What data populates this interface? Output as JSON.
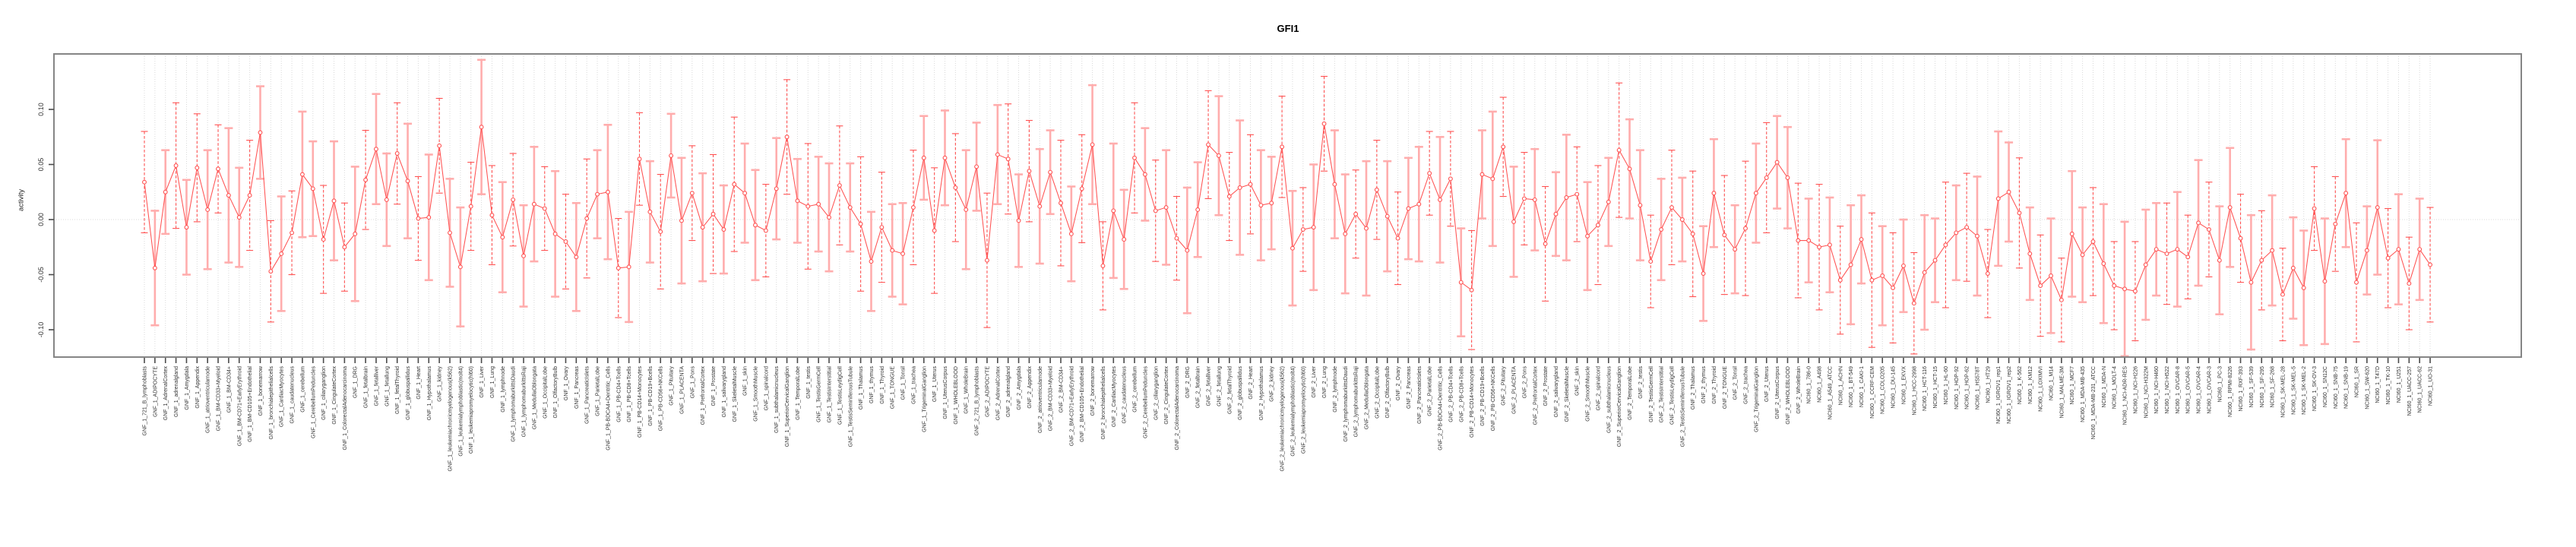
{
  "page": {
    "title": "GFI1"
  },
  "chart_data": {
    "type": "line",
    "title": "GFI1",
    "ylabel": "activity",
    "xlabel": "",
    "ytick_labels": [
      "0.10",
      "0.05",
      "0.00",
      "-0.05",
      "-0.10"
    ],
    "ylim": [
      -0.125,
      0.148
    ],
    "grid": "dotted vertical gridline at every category; dotted horizontal line at 0",
    "legend_position": "none",
    "marker": "open-circle",
    "error_bars": true,
    "colors": {
      "series": "#ff5252",
      "error_bars_light": "#ffadad",
      "gridline": "#d9d9d9",
      "axis_border": "#858585",
      "text": "#303030"
    },
    "categories": [
      "GNF_1_721_B_lymphoblasts",
      "GNF_1_ADIPOCYTE",
      "GNF_1_AdrenalCortex",
      "GNF_1_adrenalgland",
      "GNF_1_Amygdala",
      "GNF_1_Appendix",
      "GNF_1_atrioventricularnode",
      "GNF_1_BM-CD33+Myeloid",
      "GNF_1_BM-CD34+",
      "GNF_1_BM-CD71+EarlyErythroid",
      "GNF_1_BM-CD105+Endothelial",
      "GNF_1_bonemarrow",
      "GNF_1_bronchialepithelialcells",
      "GNF_1_CardiacMyocytes",
      "GNF_1_caudatenucleus",
      "GNF_1_cerebellum",
      "GNF_1_CerebellumPeduncles",
      "GNF_1_ciliaryganglion",
      "GNF_1_CingulateCortex",
      "GNF_1_ColorectalAdenocarcinoma",
      "GNF_1_DRG",
      "GNF_1_fetalbrain",
      "GNF_1_fetalliver",
      "GNF_1_fetallung",
      "GNF_1_fetalThyroid",
      "GNF_1_globuspallidus",
      "GNF_1_Heart",
      "GNF_1_Hypothalamus",
      "GNF_1_kidney",
      "GNF_1_leukemiachronicmyelogenous(k562)",
      "GNF_1_leukemialymphoblastic(molt4)",
      "GNF_1_leukemiapromyelocytic(hl60)",
      "GNF_1_Liver",
      "GNF_1_Lung",
      "GNF_1_lymphnode",
      "GNF_1_lymphomaburkittsDaudi",
      "GNF_1_lymphomaburkittsRaji",
      "GNF_1_MedullaOblongata",
      "GNF_1_OccipitalLobe",
      "GNF_1_OlfactoryBulb",
      "GNF_1_Ovary",
      "GNF_1_Pancreas",
      "GNF_1_PancreaticIslets",
      "GNF_1_ParietalLobe",
      "GNF_1_PB-BDCA4+Dentritic_Cells",
      "GNF_1_PB-CD4+Tcells",
      "GNF_1_PB-CD8+Tcells",
      "GNF_1_PB-CD14+Monocytes",
      "GNF_1_PB-CD19+Bcells",
      "GNF_1_PB-CD56+NKCells",
      "GNF_1_Pituitary",
      "GNF_1_PLACENTA",
      "GNF_1_Pons",
      "GNF_1_PrefrontalCortex",
      "GNF_1_Prostate",
      "GNF_1_salivarygland",
      "GNF_1_SkeletalMuscle",
      "GNF_1_skin",
      "GNF_1_SmoothMuscle",
      "GNF_1_spinalcord",
      "GNF_1_subthalamicnucleus",
      "GNF_1_SuperiorCervicalGanglion",
      "GNF_1_TemporalLobe",
      "GNF_1_testis",
      "GNF_1_TestisGermCell",
      "GNF_1_TestisInterstitial",
      "GNF_1_TestisLeydigCell",
      "GNF_1_TestisSeminiferousTubule",
      "GNF_1_Thalamus",
      "GNF_1_thymus",
      "GNF_1_Thyroid",
      "GNF_1_TONGUE",
      "GNF_1_Tonsil",
      "GNF_1_trachea",
      "GNF_1_TrigeminalGanglion",
      "GNF_1_Uterus",
      "GNF_1_UterusCorpus",
      "GNF_1_WHOLEBLOOD",
      "GNF_1_WholeBrain",
      "GNF_2_721_B_lymphoblasts",
      "GNF_2_ADIPOCYTE",
      "GNF_2_AdrenalCortex",
      "GNF_2_adrenalgland",
      "GNF_2_Amygdala",
      "GNF_2_Appendix",
      "GNF_2_atrioventricularnode",
      "GNF_2_BM-CD33+Myeloid",
      "GNF_2_BM-CD34+",
      "GNF_2_BM-CD71+EarlyErythroid",
      "GNF_2_BM-CD105+Endothelial",
      "GNF_2_bonemarrow",
      "GNF_2_bronchialepithelialcells",
      "GNF_2_CardiacMyocytes",
      "GNF_2_caudatenucleus",
      "GNF_2_cerebellum",
      "GNF_2_CerebellumPeduncles",
      "GNF_2_ciliaryganglion",
      "GNF_2_CingulateCortex",
      "GNF_2_ColorectalAdenocarcinoma",
      "GNF_2_DRG",
      "GNF_2_fetalbrain",
      "GNF_2_fetalliver",
      "GNF_2_fetallung",
      "GNF_2_fetalThyroid",
      "GNF_2_globuspallidus",
      "GNF_2_Heart",
      "GNF_2_Hypothalamus",
      "GNF_2_kidney",
      "GNF_2_leukemiachronicmyelogenous(k562)",
      "GNF_2_leukemialymphoblastic(molt4)",
      "GNF_2_leukemiapromyelocytic(hl60)",
      "GNF_2_Liver",
      "GNF_2_Lung",
      "GNF_2_lymphnode",
      "GNF_2_lymphomaburkittsDaudi",
      "GNF_2_lymphomaburkittsRaji",
      "GNF_2_MedullaOblongata",
      "GNF_2_OccipitalLobe",
      "GNF_2_OlfactoryBulb",
      "GNF_2_Ovary",
      "GNF_2_Pancreas",
      "GNF_2_PancreaticIslets",
      "GNF_2_ParietalLobe",
      "GNF_2_PB-BDCA4+Dentritic_Cells",
      "GNF_2_PB-CD4+Tcells",
      "GNF_2_PB-CD8+Tcells",
      "GNF_2_PB-CD14+Monocytes",
      "GNF_2_PB-CD19+Bcells",
      "GNF_2_PB-CD56+NKCells",
      "GNF_2_Pituitary",
      "GNF_2_PLACENTA",
      "GNF_2_Pons",
      "GNF_2_PrefrontalCortex",
      "GNF_2_Prostate",
      "GNF_2_salivarygland",
      "GNF_2_SkeletalMuscle",
      "GNF_2_skin",
      "GNF_2_SmoothMuscle",
      "GNF_2_spinalcord",
      "GNF_2_subthalamicnucleus",
      "GNF_2_SuperiorCervicalGanglion",
      "GNF_2_TemporalLobe",
      "GNF_2_testis",
      "GNF_2_TestisGermCell",
      "GNF_2_TestisInterstitial",
      "GNF_2_TestisLeydigCell",
      "GNF_2_TestisSeminiferousTubule",
      "GNF_2_Thalamus",
      "GNF_2_thymus",
      "GNF_2_Thyroid",
      "GNF_2_TONGUE",
      "GNF_2_Tonsil",
      "GNF_2_trachea",
      "GNF_2_TrigeminalGanglion",
      "GNF_2_Uterus",
      "GNF_2_UterusCorpus",
      "GNF_2_WHOLEBLOOD",
      "GNF_2_WholeBrain",
      "NCI60_1_786-0",
      "NCI60_1_A498",
      "NCI60_1_A549_ATCC",
      "NCI60_1_ACHN",
      "NCI60_1_BT-549",
      "NCI60_1_CAKI-1",
      "NCI60_1_CCRF-CEM",
      "NCI60_1_COLO205",
      "NCI60_1_DU-145",
      "NCI60_1_EKVX",
      "NCI60_1_HCC-2998",
      "NCI60_1_HCT-116",
      "NCI60_1_HCT-15",
      "NCI60_1_HL-60",
      "NCI60_1_HOP-92",
      "NCI60_1_HOP-62",
      "NCI60_1_HS578T",
      "NCI60_1_HT29",
      "NCI60_1_IGROV1_rep1",
      "NCI60_1_IGROV1_rep2",
      "NCI60_1_K-562",
      "NCI60_1_KM12",
      "NCI60_1_LOXIMVI",
      "NCI60_1_M14",
      "NCI60_1_MALME-3M",
      "NCI60_1_MCF7",
      "NCI60_1_MDA-MB-435",
      "NCI60_1_MDA-MB-231_ATCC",
      "NCI60_1_MDA-N",
      "NCI60_1_MOLT-4",
      "NCI60_1_NCI-ADR-RES",
      "NCI60_1_NCI-H226",
      "NCI60_1_NCI-H322M",
      "NCI60_1_NCI-H460",
      "NCI60_1_NCI-H522",
      "NCI60_1_OVCAR-8",
      "NCI60_1_OVCAR-5",
      "NCI60_1_OVCAR-4",
      "NCI60_1_OVCAR-3",
      "NCI60_1_PC-3",
      "NCI60_1_RPMI-8226",
      "NCI60_1_RXF-393",
      "NCI60_1_SF-539",
      "NCI60_1_SF-295",
      "NCI60_1_SF-268",
      "NCI60_1_SK-MEL-28",
      "NCI60_1_SK-MEL-5",
      "NCI60_1_SK-MEL-2",
      "NCI60_1_SK-OV-3",
      "NCI60_1_SN12C",
      "NCI60_1_SNB-75",
      "NCI60_1_SNB-19",
      "NCI60_1_SR",
      "NCI60_1_SW-620",
      "NCI60_1_T47D",
      "NCI60_1_TK-10",
      "NCI60_1_U251",
      "NCI60_1_UACC-257",
      "NCI60_1_UACC-62",
      "NCI60_1_UO-31"
    ],
    "values": [
      0.034,
      -0.044,
      0.025,
      0.049,
      -0.007,
      0.047,
      0.009,
      0.046,
      0.022,
      0.002,
      0.022,
      0.079,
      -0.047,
      -0.031,
      -0.012,
      0.041,
      0.028,
      -0.018,
      0.017,
      -0.025,
      -0.013,
      0.036,
      0.064,
      0.018,
      0.06,
      0.035,
      0.001,
      0.002,
      0.067,
      -0.012,
      -0.043,
      0.012,
      0.084,
      0.004,
      -0.016,
      0.018,
      -0.033,
      0.014,
      0.01,
      -0.013,
      -0.02,
      -0.034,
      0.001,
      0.023,
      0.025,
      -0.044,
      -0.043,
      0.055,
      0.007,
      -0.011,
      0.058,
      -0.001,
      0.024,
      -0.007,
      0.005,
      -0.009,
      0.032,
      0.024,
      -0.005,
      -0.01,
      0.028,
      0.075,
      0.017,
      0.012,
      0.014,
      0.002,
      0.031,
      0.011,
      -0.004,
      -0.038,
      -0.007,
      -0.028,
      -0.031,
      0.011,
      0.056,
      -0.01,
      0.056,
      0.029,
      0.009,
      0.048,
      -0.037,
      0.059,
      0.055,
      -0.001,
      0.044,
      0.012,
      0.043,
      0.015,
      -0.013,
      0.028,
      0.068,
      -0.042,
      0.008,
      -0.018,
      0.056,
      0.041,
      0.008,
      0.011,
      -0.017,
      -0.028,
      0.009,
      0.068,
      0.058,
      0.021,
      0.029,
      0.032,
      0.013,
      0.015,
      0.066,
      -0.026,
      -0.009,
      -0.007,
      0.087,
      0.032,
      -0.013,
      0.005,
      -0.008,
      0.027,
      0.003,
      -0.017,
      0.01,
      0.014,
      0.042,
      0.018,
      0.037,
      -0.057,
      -0.064,
      0.041,
      0.037,
      0.066,
      -0.002,
      0.019,
      0.018,
      -0.022,
      0.005,
      0.02,
      0.023,
      -0.015,
      -0.005,
      0.016,
      0.063,
      0.046,
      0.013,
      -0.038,
      -0.009,
      0.011,
      0.0,
      -0.013,
      -0.049,
      0.024,
      -0.014,
      -0.027,
      -0.008,
      0.024,
      0.038,
      0.052,
      0.038,
      -0.019,
      -0.019,
      -0.025,
      -0.023,
      -0.055,
      -0.041,
      -0.018,
      -0.055,
      -0.051,
      -0.062,
      -0.042,
      -0.076,
      -0.048,
      -0.037,
      -0.023,
      -0.012,
      -0.007,
      -0.015,
      -0.049,
      0.019,
      0.025,
      0.006,
      -0.031,
      -0.06,
      -0.051,
      -0.073,
      -0.013,
      -0.032,
      -0.02,
      -0.04,
      -0.06,
      -0.063,
      -0.065,
      -0.041,
      -0.027,
      -0.031,
      -0.027,
      -0.034,
      -0.003,
      -0.009,
      -0.037,
      0.011,
      -0.017,
      -0.057,
      -0.037,
      -0.028,
      -0.068,
      -0.044,
      -0.062,
      0.01,
      -0.056,
      -0.004,
      0.024,
      -0.057,
      -0.028,
      0.011,
      -0.035,
      -0.027,
      -0.058,
      -0.027,
      -0.041
    ],
    "errors": [
      0.046,
      0.052,
      0.038,
      0.057,
      0.043,
      0.049,
      0.054,
      0.04,
      0.061,
      0.045,
      0.05,
      0.042,
      0.046,
      0.052,
      0.038,
      0.057,
      0.043,
      0.049,
      0.054,
      0.04,
      0.061,
      0.045,
      0.05,
      0.042,
      0.046,
      0.052,
      0.038,
      0.057,
      0.043,
      0.049,
      0.054,
      0.04,
      0.061,
      0.045,
      0.05,
      0.042,
      0.046,
      0.052,
      0.038,
      0.057,
      0.043,
      0.049,
      0.054,
      0.04,
      0.061,
      0.045,
      0.05,
      0.042,
      0.046,
      0.052,
      0.038,
      0.057,
      0.043,
      0.049,
      0.054,
      0.04,
      0.061,
      0.045,
      0.05,
      0.042,
      0.046,
      0.052,
      0.038,
      0.057,
      0.043,
      0.049,
      0.054,
      0.04,
      0.061,
      0.045,
      0.05,
      0.042,
      0.046,
      0.052,
      0.038,
      0.057,
      0.043,
      0.049,
      0.054,
      0.04,
      0.061,
      0.045,
      0.05,
      0.042,
      0.046,
      0.052,
      0.038,
      0.057,
      0.043,
      0.049,
      0.054,
      0.04,
      0.061,
      0.045,
      0.05,
      0.042,
      0.046,
      0.052,
      0.038,
      0.057,
      0.043,
      0.049,
      0.054,
      0.04,
      0.061,
      0.045,
      0.05,
      0.042,
      0.046,
      0.052,
      0.038,
      0.057,
      0.043,
      0.049,
      0.054,
      0.04,
      0.061,
      0.045,
      0.05,
      0.042,
      0.046,
      0.052,
      0.038,
      0.057,
      0.043,
      0.049,
      0.054,
      0.04,
      0.061,
      0.045,
      0.05,
      0.042,
      0.046,
      0.052,
      0.038,
      0.057,
      0.043,
      0.049,
      0.054,
      0.04,
      0.061,
      0.045,
      0.05,
      0.042,
      0.046,
      0.052,
      0.038,
      0.057,
      0.043,
      0.049,
      0.054,
      0.04,
      0.061,
      0.045,
      0.05,
      0.042,
      0.046,
      0.052,
      0.038,
      0.057,
      0.043,
      0.049,
      0.054,
      0.04,
      0.061,
      0.045,
      0.05,
      0.042,
      0.046,
      0.052,
      0.038,
      0.057,
      0.043,
      0.049,
      0.054,
      0.04,
      0.061,
      0.045,
      0.05,
      0.042,
      0.046,
      0.052,
      0.038,
      0.057,
      0.043,
      0.049,
      0.054,
      0.04,
      0.061,
      0.045,
      0.05,
      0.042,
      0.046,
      0.052,
      0.038,
      0.057,
      0.043,
      0.049,
      0.054,
      0.04,
      0.061,
      0.045,
      0.05,
      0.042,
      0.046,
      0.052,
      0.038,
      0.057,
      0.043,
      0.049,
      0.054,
      0.04,
      0.061,
      0.045,
      0.05,
      0.042,
      0.046,
      0.052
    ]
  }
}
